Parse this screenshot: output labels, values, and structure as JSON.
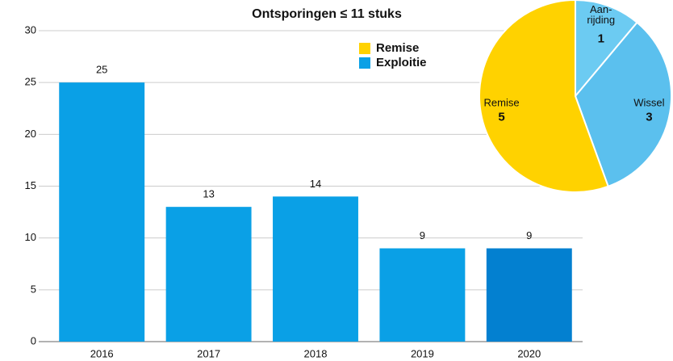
{
  "chart_data": [
    {
      "type": "bar",
      "title": "Ontsporingen ≤ 11 stuks",
      "categories": [
        "2016",
        "2017",
        "2018",
        "2019",
        "2020"
      ],
      "values": [
        25,
        13,
        14,
        9,
        9
      ],
      "colors": [
        "#0aa0e6",
        "#0aa0e6",
        "#0aa0e6",
        "#0aa0e6",
        "#0380d0"
      ],
      "legend": [
        {
          "name": "Remise",
          "color": "#ffd200"
        },
        {
          "name": "Exploitie",
          "color": "#0aa0e6"
        }
      ],
      "ylim": [
        0,
        30
      ],
      "yticks": [
        0,
        5,
        10,
        15,
        20,
        25,
        30
      ],
      "grid": true
    },
    {
      "type": "pie",
      "categories": [
        "Aan-\nrijding",
        "Wissel",
        "Remise"
      ],
      "values": [
        1,
        3,
        5
      ],
      "colors": [
        "#6ccbf2",
        "#5bc0ee",
        "#ffd200"
      ]
    }
  ]
}
